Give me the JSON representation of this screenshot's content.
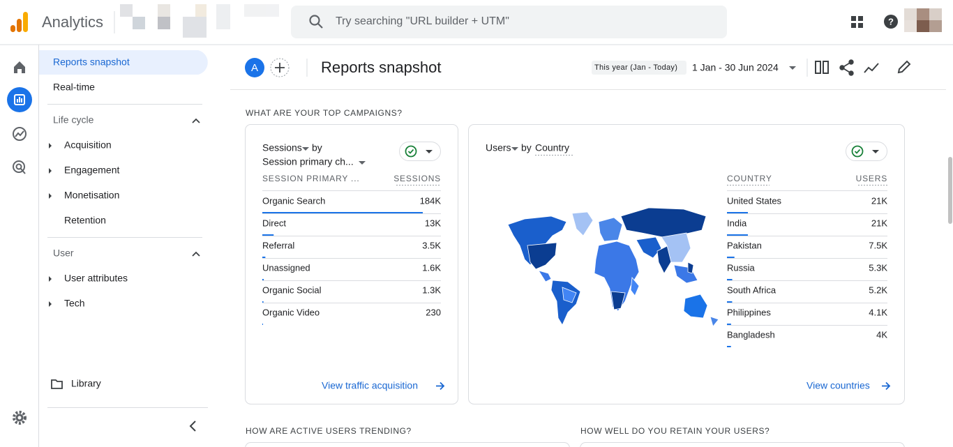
{
  "header": {
    "app_name": "Analytics",
    "search_placeholder": "Try searching \"URL builder + UTM\""
  },
  "nav": {
    "top_items": [
      "Reports snapshot",
      "Real-time"
    ],
    "groups": [
      {
        "title": "Life cycle",
        "items": [
          "Acquisition",
          "Engagement",
          "Monetisation",
          "Retention"
        ]
      },
      {
        "title": "User",
        "items": [
          "User attributes",
          "Tech"
        ]
      }
    ],
    "library": "Library"
  },
  "toolbar": {
    "avatar": "A",
    "title": "Reports snapshot",
    "date_range_label": "This year (Jan - Today)",
    "date_range": "1 Jan - 30 Jun 2024"
  },
  "section_titles": [
    "WHAT ARE YOUR TOP CAMPAIGNS?",
    "HOW ARE ACTIVE USERS TRENDING?",
    "HOW WELL DO YOU RETAIN YOUR USERS?"
  ],
  "campaigns_card": {
    "metric": "Sessions",
    "by": "by",
    "dimension": "Session primary ch...",
    "columns": [
      "SESSION PRIMARY ...",
      "SESSIONS"
    ],
    "rows": [
      {
        "label": "Organic Search",
        "value": 184000,
        "value_label": "184K"
      },
      {
        "label": "Direct",
        "value": 13000,
        "value_label": "13K"
      },
      {
        "label": "Referral",
        "value": 3500,
        "value_label": "3.5K"
      },
      {
        "label": "Unassigned",
        "value": 1600,
        "value_label": "1.6K"
      },
      {
        "label": "Organic Social",
        "value": 1300,
        "value_label": "1.3K"
      },
      {
        "label": "Organic Video",
        "value": 230,
        "value_label": "230"
      }
    ],
    "link": "View traffic acquisition"
  },
  "country_card": {
    "metric": "Users",
    "by": "by",
    "dimension": "Country",
    "columns": [
      "COUNTRY",
      "USERS"
    ],
    "rows": [
      {
        "label": "United States",
        "value": 21000,
        "value_label": "21K"
      },
      {
        "label": "India",
        "value": 21000,
        "value_label": "21K"
      },
      {
        "label": "Pakistan",
        "value": 7500,
        "value_label": "7.5K"
      },
      {
        "label": "Russia",
        "value": 5300,
        "value_label": "5.3K"
      },
      {
        "label": "South Africa",
        "value": 5200,
        "value_label": "5.2K"
      },
      {
        "label": "Philippines",
        "value": 4100,
        "value_label": "4.1K"
      },
      {
        "label": "Bangladesh",
        "value": 4000,
        "value_label": "4K"
      }
    ],
    "link": "View countries"
  }
}
